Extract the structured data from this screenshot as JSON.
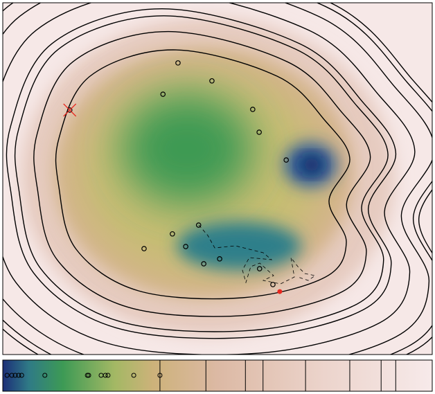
{
  "chart_data": {
    "type": "contour",
    "xlim": [
      0,
      100
    ],
    "ylim": [
      0,
      100
    ],
    "levels": [
      36.6,
      47.3,
      56.5,
      60.6,
      70.5,
      80.8,
      88.1,
      91.5
    ],
    "series": [
      {
        "color": "#000000",
        "marker": "circle",
        "x": [
          40.8,
          48.7,
          37.3,
          58.2,
          59.7,
          66.0,
          15.6,
          45.6,
          39.5,
          42.6,
          32.9,
          50.5,
          46.8,
          59.8,
          62.9
        ],
        "y": [
          82.9,
          77.8,
          74.0,
          69.7,
          63.2,
          55.3,
          69.5,
          36.8,
          34.3,
          30.7,
          30.1,
          27.2,
          25.8,
          24.4,
          19.9
        ]
      },
      {
        "color": "#e8271f",
        "marker": "x",
        "x": [
          15.6
        ],
        "y": [
          69.5
        ]
      },
      {
        "color": "#e8271f",
        "marker": "dot",
        "x": [
          64.5
        ],
        "y": [
          17.9
        ]
      }
    ],
    "colorbar": {
      "lim": [
        0,
        100
      ],
      "values": [
        1.0,
        2.1,
        2.9,
        3.7,
        4.4,
        9.8,
        19.7,
        20.0,
        22.9,
        23.9,
        24.5,
        30.5,
        36.6
      ]
    }
  }
}
